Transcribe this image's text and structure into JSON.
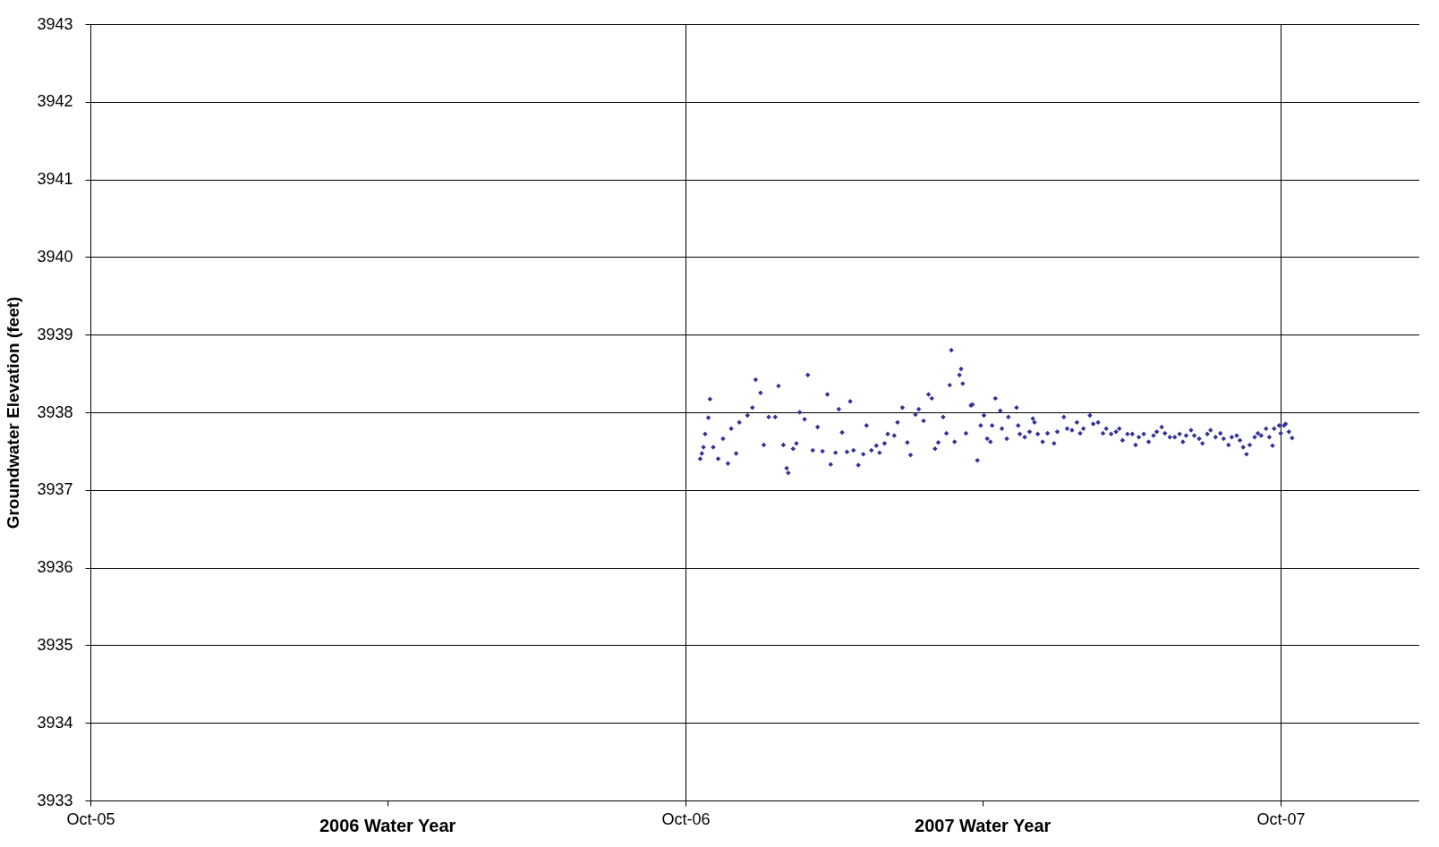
{
  "chart_data": {
    "type": "scatter",
    "ylabel": "Groundwater Elevation (feet)",
    "xlim": [
      "2005-10-01",
      "2007-12-25"
    ],
    "ylim": [
      3933,
      3943
    ],
    "xticks": [
      {
        "value": "2005-10-01",
        "label": "Oct-05"
      },
      {
        "value": "2006-04-01",
        "label": "2006 Water Year"
      },
      {
        "value": "2006-10-01",
        "label": "Oct-06"
      },
      {
        "value": "2007-04-01",
        "label": "2007 Water Year"
      },
      {
        "value": "2007-10-01",
        "label": "Oct-07"
      }
    ],
    "yticks": [
      3933,
      3934,
      3935,
      3936,
      3937,
      3938,
      3939,
      3940,
      3941,
      3942,
      3943
    ],
    "grid": true,
    "legend": false,
    "marker": "diamond",
    "series": [
      {
        "color": "#333399",
        "x": [
          "2006-10-10",
          "2006-10-11",
          "2006-10-12",
          "2006-10-13",
          "2006-10-15",
          "2006-10-16",
          "2006-10-18",
          "2006-10-21",
          "2006-10-24",
          "2006-10-27",
          "2006-10-29",
          "2006-11-01",
          "2006-11-03",
          "2006-11-08",
          "2006-11-11",
          "2006-11-13",
          "2006-11-16",
          "2006-11-18",
          "2006-11-21",
          "2006-11-25",
          "2006-11-27",
          "2006-11-30",
          "2006-12-02",
          "2006-12-03",
          "2006-12-06",
          "2006-12-08",
          "2006-12-10",
          "2006-12-13",
          "2006-12-15",
          "2006-12-18",
          "2006-12-21",
          "2006-12-24",
          "2006-12-27",
          "2006-12-29",
          "2007-01-01",
          "2007-01-03",
          "2007-01-05",
          "2007-01-08",
          "2007-01-10",
          "2007-01-12",
          "2007-01-15",
          "2007-01-18",
          "2007-01-20",
          "2007-01-23",
          "2007-01-26",
          "2007-01-28",
          "2007-01-31",
          "2007-02-02",
          "2007-02-06",
          "2007-02-08",
          "2007-02-11",
          "2007-02-14",
          "2007-02-16",
          "2007-02-19",
          "2007-02-21",
          "2007-02-24",
          "2007-02-27",
          "2007-03-01",
          "2007-03-03",
          "2007-03-05",
          "2007-03-08",
          "2007-03-10",
          "2007-03-12",
          "2007-03-13",
          "2007-03-15",
          "2007-03-18",
          "2007-03-19",
          "2007-03-20",
          "2007-03-22",
          "2007-03-25",
          "2007-03-26",
          "2007-03-29",
          "2007-03-31",
          "2007-04-02",
          "2007-04-04",
          "2007-04-06",
          "2007-04-07",
          "2007-04-09",
          "2007-04-12",
          "2007-04-13",
          "2007-04-16",
          "2007-04-17",
          "2007-04-22",
          "2007-04-23",
          "2007-04-24",
          "2007-04-27",
          "2007-04-30",
          "2007-05-02",
          "2007-05-03",
          "2007-05-05",
          "2007-05-08",
          "2007-05-11",
          "2007-05-15",
          "2007-05-17",
          "2007-05-21",
          "2007-05-23",
          "2007-05-26",
          "2007-05-29",
          "2007-05-31",
          "2007-06-02",
          "2007-06-06",
          "2007-06-08",
          "2007-06-11",
          "2007-06-14",
          "2007-06-16",
          "2007-06-19",
          "2007-06-22",
          "2007-06-24",
          "2007-06-26",
          "2007-06-29",
          "2007-07-02",
          "2007-07-04",
          "2007-07-06",
          "2007-07-09",
          "2007-07-12",
          "2007-07-15",
          "2007-07-17",
          "2007-07-20",
          "2007-07-22",
          "2007-07-25",
          "2007-07-28",
          "2007-07-31",
          "2007-08-02",
          "2007-08-04",
          "2007-08-07",
          "2007-08-09",
          "2007-08-12",
          "2007-08-14",
          "2007-08-17",
          "2007-08-19",
          "2007-08-22",
          "2007-08-25",
          "2007-08-27",
          "2007-08-30",
          "2007-09-01",
          "2007-09-04",
          "2007-09-06",
          "2007-09-08",
          "2007-09-10",
          "2007-09-12",
          "2007-09-15",
          "2007-09-17",
          "2007-09-19",
          "2007-09-22",
          "2007-09-24",
          "2007-09-26",
          "2007-09-27",
          "2007-09-30",
          "2007-10-01",
          "2007-10-03",
          "2007-10-04",
          "2007-10-06",
          "2007-10-08"
        ],
        "values": [
          3937.4,
          3937.47,
          3937.55,
          3937.72,
          3937.93,
          3938.17,
          3937.55,
          3937.4,
          3937.66,
          3937.34,
          3937.79,
          3937.47,
          3937.87,
          3937.96,
          3938.06,
          3938.42,
          3938.25,
          3937.58,
          3937.94,
          3937.94,
          3938.34,
          3937.58,
          3937.28,
          3937.22,
          3937.53,
          3937.6,
          3938.0,
          3937.91,
          3938.48,
          3937.51,
          3937.81,
          3937.5,
          3938.23,
          3937.33,
          3937.48,
          3938.04,
          3937.74,
          3937.49,
          3938.14,
          3937.51,
          3937.32,
          3937.46,
          3937.83,
          3937.51,
          3937.57,
          3937.48,
          3937.6,
          3937.72,
          3937.7,
          3937.87,
          3938.06,
          3937.61,
          3937.45,
          3937.97,
          3938.04,
          3937.89,
          3938.23,
          3938.18,
          3937.53,
          3937.61,
          3937.94,
          3937.73,
          3938.35,
          3938.8,
          3937.62,
          3938.48,
          3938.56,
          3938.37,
          3937.73,
          3938.09,
          3938.1,
          3937.38,
          3937.83,
          3937.96,
          3937.66,
          3937.62,
          3937.83,
          3938.18,
          3938.02,
          3937.79,
          3937.66,
          3937.94,
          3938.06,
          3937.83,
          3937.72,
          3937.68,
          3937.75,
          3937.92,
          3937.87,
          3937.72,
          3937.62,
          3937.73,
          3937.6,
          3937.75,
          3937.94,
          3937.79,
          3937.77,
          3937.87,
          3937.73,
          3937.79,
          3937.96,
          3937.85,
          3937.87,
          3937.73,
          3937.79,
          3937.72,
          3937.75,
          3937.79,
          3937.64,
          3937.72,
          3937.72,
          3937.58,
          3937.68,
          3937.72,
          3937.62,
          3937.7,
          3937.75,
          3937.81,
          3937.73,
          3937.68,
          3937.68,
          3937.72,
          3937.62,
          3937.7,
          3937.77,
          3937.7,
          3937.66,
          3937.6,
          3937.72,
          3937.77,
          3937.68,
          3937.73,
          3937.66,
          3937.58,
          3937.68,
          3937.7,
          3937.64,
          3937.55,
          3937.46,
          3937.58,
          3937.68,
          3937.73,
          3937.7,
          3937.79,
          3937.68,
          3937.57,
          3937.79,
          3937.83,
          3937.73,
          3937.83,
          3937.85,
          3937.75,
          3937.67
        ]
      }
    ]
  }
}
